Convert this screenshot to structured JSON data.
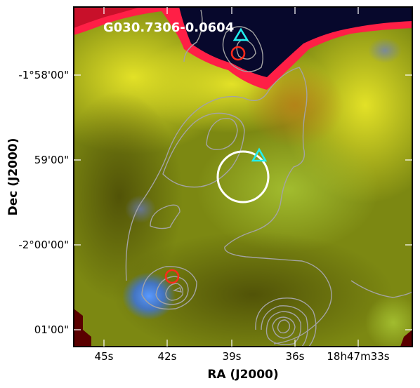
{
  "figure": {
    "source_title": "G030.7306-0.0604",
    "xlabel": "RA (J2000)",
    "ylabel": "Dec (J2000)",
    "x_ticks": [
      "45s",
      "42s",
      "39s",
      "36s",
      "18h47m33s"
    ],
    "y_ticks": [
      "-1°58'00\"",
      "59'00\"",
      "-2°00'00\"",
      "01'00\""
    ]
  },
  "colors": {
    "frame": "#000000",
    "contour": "#a0a0a0",
    "circle_large": "#ffffff",
    "circle_small": "#ff2a1a",
    "triangle": "#22eeee",
    "background_green": "#7f8a10",
    "background_yellow": "#d8d820",
    "blob_red": "#ff1a40",
    "blob_dark": "#06062a",
    "blob_blue": "#4a8cff"
  },
  "markers": {
    "circles": [
      {
        "kind": "small",
        "color": "red"
      },
      {
        "kind": "small",
        "color": "red"
      },
      {
        "kind": "large",
        "color": "white"
      }
    ],
    "triangles": [
      {
        "color": "cyan"
      },
      {
        "color": "cyan"
      }
    ]
  }
}
